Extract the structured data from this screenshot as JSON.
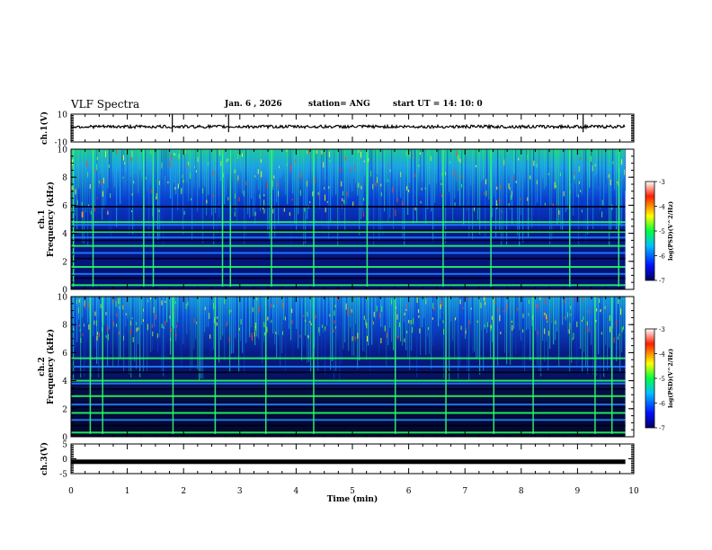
{
  "header": {
    "title": "VLF Spectra",
    "date": "Jan. 6 , 2026",
    "station": "station= ANG",
    "start": "start UT =  14: 10: 0"
  },
  "chart_data": {
    "type": "heatmap",
    "title": "VLF Spectra",
    "xlabel": "Time (min)",
    "xlim": [
      0,
      10
    ],
    "xticks": [
      "0",
      "1",
      "2",
      "3",
      "4",
      "5",
      "6",
      "7",
      "8",
      "9",
      "10"
    ],
    "panels": [
      {
        "name": "ch1-waveform",
        "ylabel": "ch.1(V)",
        "ylim": [
          -10,
          10
        ],
        "yticks": [
          "10",
          "-10"
        ],
        "baseline": 1,
        "spikes": [
          1.8,
          2.8,
          9.1
        ]
      },
      {
        "name": "ch1-spectrogram",
        "ylabel": "ch.1 Frequency (kHz)",
        "ylim": [
          0,
          10
        ],
        "yticks": [
          "0",
          "2",
          "4",
          "6",
          "8",
          "10"
        ],
        "colorbar": {
          "label": "log(PSD)(V^2/Hz)",
          "ticks": [
            "-3",
            "-4",
            "-5",
            "-6",
            "-7"
          ],
          "range": [
            -7,
            -3
          ]
        },
        "tone_lines_khz": [
          0.3,
          0.8,
          1.1,
          1.6,
          2.2,
          2.6,
          3.1,
          3.5,
          3.7,
          4.1,
          4.2,
          4.6,
          4.8,
          5.9
        ],
        "bright_columns_min": [
          0.03,
          0.38,
          1.28,
          1.45,
          2.68,
          2.82,
          3.55,
          4.3,
          5.25,
          6.6,
          7.45,
          8.85,
          9.72
        ]
      },
      {
        "name": "ch2-spectrogram",
        "ylabel": "ch.2 Frequency (kHz)",
        "ylim": [
          0,
          10
        ],
        "yticks": [
          "0",
          "2",
          "4",
          "6",
          "8",
          "10"
        ],
        "colorbar": {
          "label": "log(PSD)(V^2/Hz)",
          "ticks": [
            "-3",
            "-4",
            "-5",
            "-6",
            "-7"
          ],
          "range": [
            -7,
            -3
          ]
        },
        "tone_lines_khz": [
          0.3,
          0.8,
          1.2,
          1.7,
          2.1,
          2.3,
          2.9,
          3.4,
          3.8,
          4.0,
          4.6,
          5.0,
          5.6
        ],
        "bright_columns_min": [
          0.33,
          0.55,
          1.8,
          2.55,
          3.45,
          4.3,
          5.75,
          6.65,
          7.5,
          8.2,
          9.3,
          9.6
        ]
      },
      {
        "name": "ch3-waveform",
        "ylabel": "ch.3(V)",
        "ylim": [
          -5,
          5
        ],
        "yticks": [
          "5",
          "0",
          "-5"
        ],
        "baseline": -1
      }
    ]
  }
}
